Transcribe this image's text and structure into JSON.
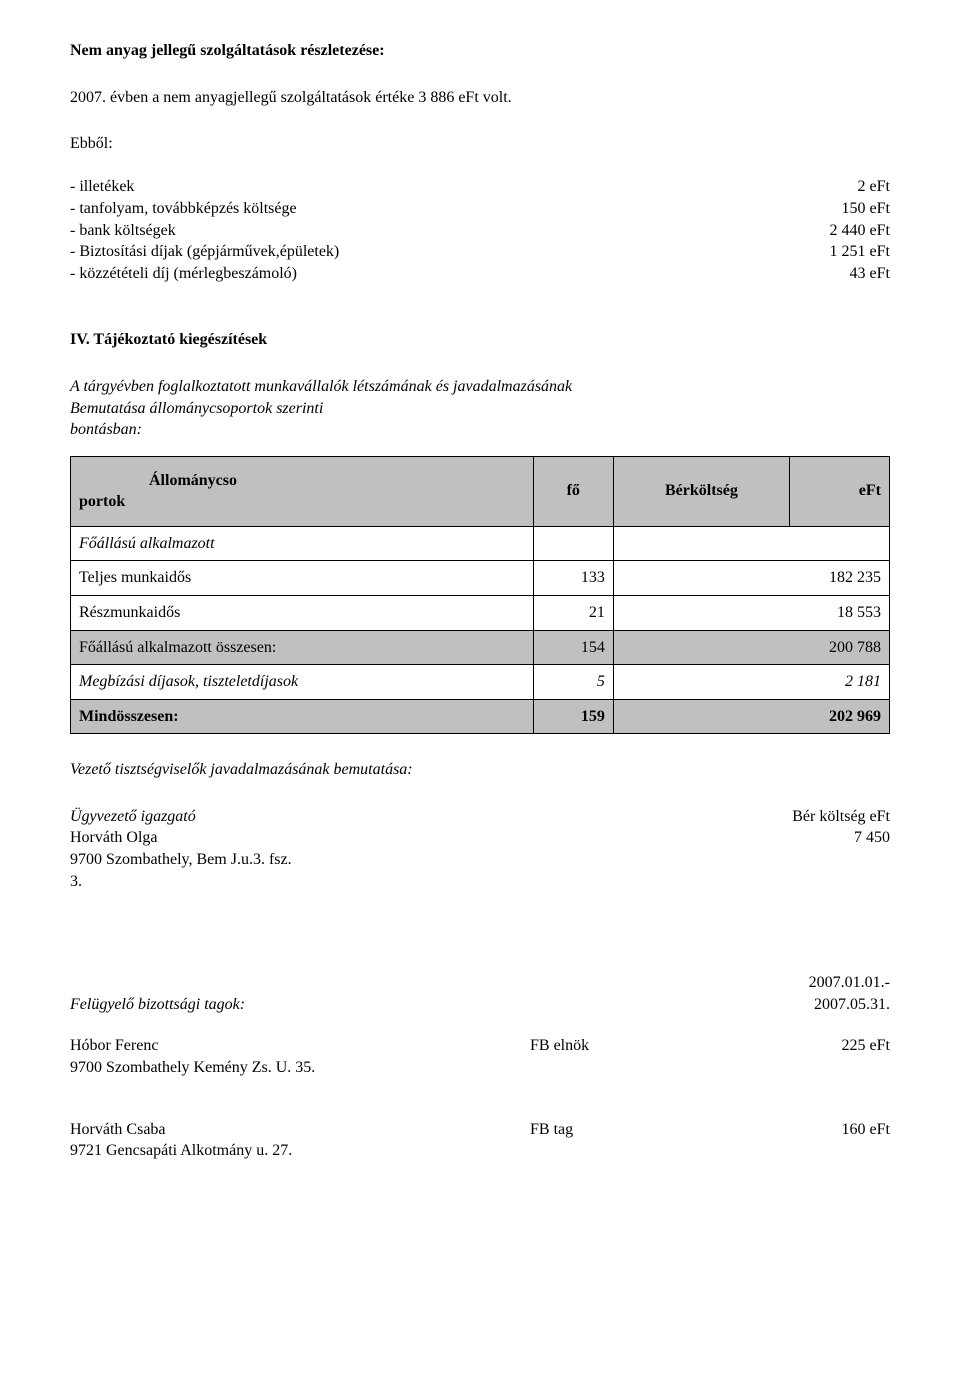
{
  "section1": {
    "title": "Nem anyag jellegű szolgáltatások részletezése:",
    "para": "2007. évben a nem anyagjellegű szolgáltatások értéke 3 886 eFt volt.",
    "lead": "Ebből:",
    "items": [
      {
        "label": "- illetékek",
        "value": "2 eFt"
      },
      {
        "label": "- tanfolyam, továbbképzés költsége",
        "value": "150 eFt"
      },
      {
        "label": "- bank költségek",
        "value": "2 440 eFt"
      },
      {
        "label": "- Biztosítási díjak (gépjárművek,épületek)",
        "value": "1 251 eFt"
      },
      {
        "label": "- közzétételi díj (mérlegbeszámoló)",
        "value": "43 eFt"
      }
    ]
  },
  "section2": {
    "heading": "IV. Tájékoztató kiegészítések",
    "intro_line1": "A tárgyévben foglalkoztatott munkavállalók létszámának és javadalmazásának",
    "intro_line2": " Bemutatása állománycsoportok szerinti",
    "intro_line3": "bontásban:",
    "table": {
      "h1_line1": "Állománycso",
      "h1_line2": "portok",
      "h2": "fő",
      "h3": "Bérköltség",
      "h4": "eFt",
      "rows": [
        {
          "type": "section",
          "label": "Főállású alkalmazott",
          "c2": "",
          "c3": ""
        },
        {
          "type": "data",
          "label": "Teljes munkaidős",
          "c2": "133",
          "c3": "182 235"
        },
        {
          "type": "data",
          "label": "Részmunkaidős",
          "c2": "21",
          "c3": "18 553"
        },
        {
          "type": "gray",
          "label": "Főállású alkalmazott összesen:",
          "c2": "154",
          "c3": "200 788"
        },
        {
          "type": "italic",
          "label": "Megbízási díjasok, tiszteletdíjasok",
          "c2": "5",
          "c3": "2 181"
        },
        {
          "type": "graybold",
          "label": "Mindösszesen:",
          "c2": "159",
          "c3": "202 969"
        }
      ]
    },
    "sub_title": "Vezető tisztségviselők javadalmazásának bemutatása:",
    "ugyvezeto": {
      "role": "Ügyvezető igazgató",
      "role_right": "Bér költség eFt",
      "name": "Horváth Olga",
      "amount": "7 450",
      "addr1": "9700 Szombathely, Bem J.u.3. fsz.",
      "addr2": "3."
    },
    "felugyelo": {
      "date1": "2007.01.01.-",
      "label": "Felügyelő bizottsági tagok:",
      "date2": "2007.05.31."
    },
    "members": [
      {
        "name": "Hóbor Ferenc",
        "role": "FB elnök",
        "amount": "225 eFt",
        "addr": "9700 Szombathely Kemény Zs. U. 35."
      },
      {
        "name": "Horváth Csaba",
        "role": "FB tag",
        "amount": "160 eFt",
        "addr": "9721 Gencsapáti Alkotmány u. 27."
      }
    ]
  }
}
